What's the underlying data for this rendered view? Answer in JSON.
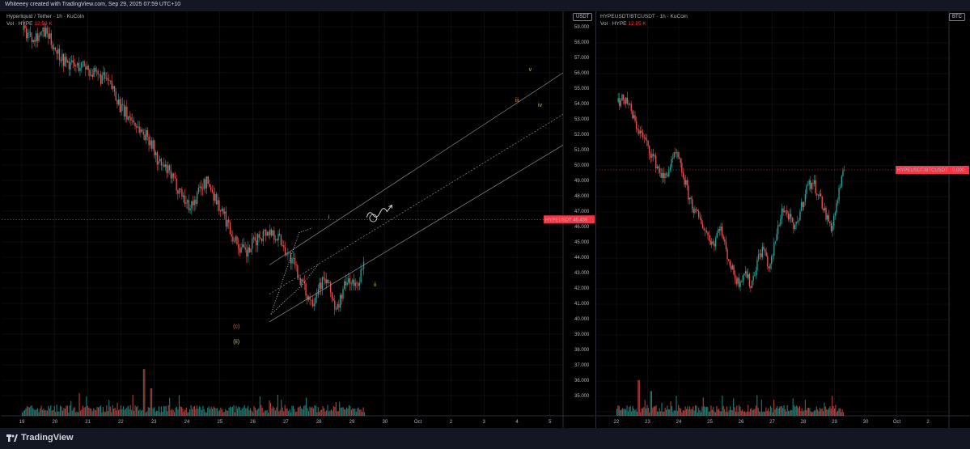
{
  "topbar": {
    "text": "Whiteeey created with TradingView.com, Sep 29, 2025 07:59 UTC+10"
  },
  "left": {
    "title": "Hyperliquid / Tether · 1h · KuCoin",
    "vol_label": "Vol · HYPE",
    "vol_value": "12.59 K",
    "unit": "USDT",
    "price_label": "HYPEUSDT",
    "price_value": "46.459"
  },
  "right": {
    "title": "HYPEUSDT/BTCUSDT · 1h · KuCoin",
    "vol_label": "Vol · HYPE",
    "vol_value": "12.85 K",
    "unit": "BTC",
    "price_label": "HYPEUSDT/BTCUSDT",
    "price_value": "0.000"
  },
  "footer": {
    "brand": "TradingView"
  },
  "colors": {
    "up": "#26a69a",
    "down": "#ef5350",
    "bg": "#000000",
    "grid": "#1a1a1a",
    "label": "#f23645"
  },
  "chart_data": [
    {
      "type": "candlestick",
      "title": "Hyperliquid / Tether · 1h · KuCoin",
      "ylabel": "USDT",
      "ylim": [
        34.0,
        59.6
      ],
      "y_ticks": [
        "59.000",
        "58.000",
        "57.000",
        "56.000",
        "55.000",
        "54.000",
        "53.000",
        "52.000",
        "51.000",
        "50.000",
        "49.000",
        "48.000",
        "47.000",
        "46.000",
        "45.000",
        "44.000",
        "43.000",
        "42.000",
        "41.000",
        "40.000",
        "39.000",
        "38.000",
        "37.000",
        "36.000",
        "35.000"
      ],
      "x_ticks": [
        "19",
        "20",
        "21",
        "22",
        "23",
        "24",
        "25",
        "26",
        "27",
        "28",
        "29",
        "30",
        "Oct",
        "2",
        "3",
        "4",
        "5"
      ],
      "close_path": [
        [
          0,
          58.8
        ],
        [
          0.3,
          58.4
        ],
        [
          0.7,
          58.6
        ],
        [
          1.0,
          57.6
        ],
        [
          1.3,
          56.7
        ],
        [
          1.6,
          56.4
        ],
        [
          1.9,
          56.5
        ],
        [
          2.2,
          55.8
        ],
        [
          2.5,
          55.6
        ],
        [
          2.8,
          54.8
        ],
        [
          3.0,
          53.6
        ],
        [
          3.3,
          53.0
        ],
        [
          3.6,
          52.2
        ],
        [
          3.9,
          51.6
        ],
        [
          4.1,
          50.2
        ],
        [
          4.4,
          49.6
        ],
        [
          4.6,
          48.9
        ],
        [
          4.8,
          48.3
        ],
        [
          5.0,
          47.4
        ],
        [
          5.2,
          47.5
        ],
        [
          5.4,
          48.6
        ],
        [
          5.6,
          48.9
        ],
        [
          5.8,
          48.1
        ],
        [
          6.0,
          47.1
        ],
        [
          6.2,
          46.3
        ],
        [
          6.4,
          45.3
        ],
        [
          6.6,
          44.6
        ],
        [
          6.8,
          44.2
        ],
        [
          7.0,
          44.9
        ],
        [
          7.2,
          45.4
        ],
        [
          7.4,
          45.7
        ],
        [
          7.6,
          45.6
        ],
        [
          7.8,
          45.2
        ],
        [
          8.0,
          44.4
        ],
        [
          8.2,
          43.6
        ],
        [
          8.4,
          42.7
        ],
        [
          8.6,
          41.6
        ],
        [
          8.8,
          41.2
        ],
        [
          9.0,
          42.3
        ],
        [
          9.2,
          42.5
        ],
        [
          9.4,
          41.4
        ],
        [
          9.5,
          40.3
        ],
        [
          9.7,
          41.8
        ],
        [
          9.9,
          42.6
        ],
        [
          10.1,
          42.0
        ],
        [
          10.3,
          43.2
        ],
        [
          10.5,
          44.2
        ],
        [
          10.7,
          45.0
        ],
        [
          10.9,
          45.3
        ],
        [
          11.1,
          44.8
        ],
        [
          11.3,
          44.6
        ],
        [
          11.5,
          44.0
        ],
        [
          11.7,
          43.4
        ],
        [
          11.9,
          43.6
        ],
        [
          12.1,
          44.7
        ],
        [
          12.3,
          45.3
        ],
        [
          12.5,
          45.8
        ],
        [
          12.7,
          45.6
        ],
        [
          12.9,
          45.1
        ],
        [
          13.1,
          44.8
        ],
        [
          13.3,
          43.9
        ],
        [
          13.5,
          43.3
        ],
        [
          13.7,
          43.0
        ],
        [
          13.9,
          44.0
        ],
        [
          14.1,
          44.8
        ],
        [
          14.3,
          45.5
        ],
        [
          14.5,
          46.0
        ],
        [
          14.7,
          46.3
        ],
        [
          14.9,
          46.46
        ]
      ],
      "volume_ylim": [
        0,
        10
      ],
      "annotations": [
        {
          "text": "i",
          "date": 12.3,
          "price": 46.5,
          "color": "#b2b5be"
        },
        {
          "text": "ii",
          "date": 13.7,
          "price": 42.1,
          "color": "#c8b45a"
        },
        {
          "text": "(c)",
          "date": 9.5,
          "price": 39.4,
          "color": "#ef5350"
        },
        {
          "text": "(ii)",
          "date": 9.5,
          "price": 38.4,
          "color": "#d4c24a"
        },
        {
          "text": "iii",
          "date": 18.0,
          "price": 54.1,
          "color": "#f57c2e"
        },
        {
          "text": "iv",
          "date": 18.7,
          "price": 53.8,
          "color": "#c8b45a"
        },
        {
          "text": "v",
          "date": 18.4,
          "price": 56.1,
          "color": "#c8b45a"
        }
      ]
    },
    {
      "type": "candlestick",
      "title": "HYPEUSDT/BTCUSDT · 1h · KuCoin",
      "ylabel": "BTC",
      "x_ticks": [
        "22",
        "23",
        "24",
        "25",
        "26",
        "27",
        "28",
        "29",
        "30",
        "Oct",
        "2"
      ],
      "close_path": [
        [
          22.0,
          0.82
        ],
        [
          22.3,
          0.83
        ],
        [
          22.6,
          0.75
        ],
        [
          22.9,
          0.7
        ],
        [
          23.1,
          0.66
        ],
        [
          23.3,
          0.62
        ],
        [
          23.5,
          0.58
        ],
        [
          23.7,
          0.62
        ],
        [
          23.9,
          0.66
        ],
        [
          24.1,
          0.6
        ],
        [
          24.3,
          0.53
        ],
        [
          24.5,
          0.48
        ],
        [
          24.7,
          0.45
        ],
        [
          24.9,
          0.41
        ],
        [
          25.1,
          0.38
        ],
        [
          25.3,
          0.44
        ],
        [
          25.5,
          0.36
        ],
        [
          25.7,
          0.3
        ],
        [
          25.9,
          0.26
        ],
        [
          26.1,
          0.3
        ],
        [
          26.3,
          0.25
        ],
        [
          26.5,
          0.33
        ],
        [
          26.7,
          0.37
        ],
        [
          26.9,
          0.3
        ],
        [
          27.1,
          0.4
        ],
        [
          27.3,
          0.49
        ],
        [
          27.5,
          0.47
        ],
        [
          27.7,
          0.42
        ],
        [
          27.9,
          0.49
        ],
        [
          28.1,
          0.56
        ],
        [
          28.3,
          0.57
        ],
        [
          28.5,
          0.53
        ],
        [
          28.7,
          0.47
        ],
        [
          28.9,
          0.43
        ],
        [
          29.1,
          0.53
        ],
        [
          29.3,
          0.61
        ]
      ]
    }
  ]
}
